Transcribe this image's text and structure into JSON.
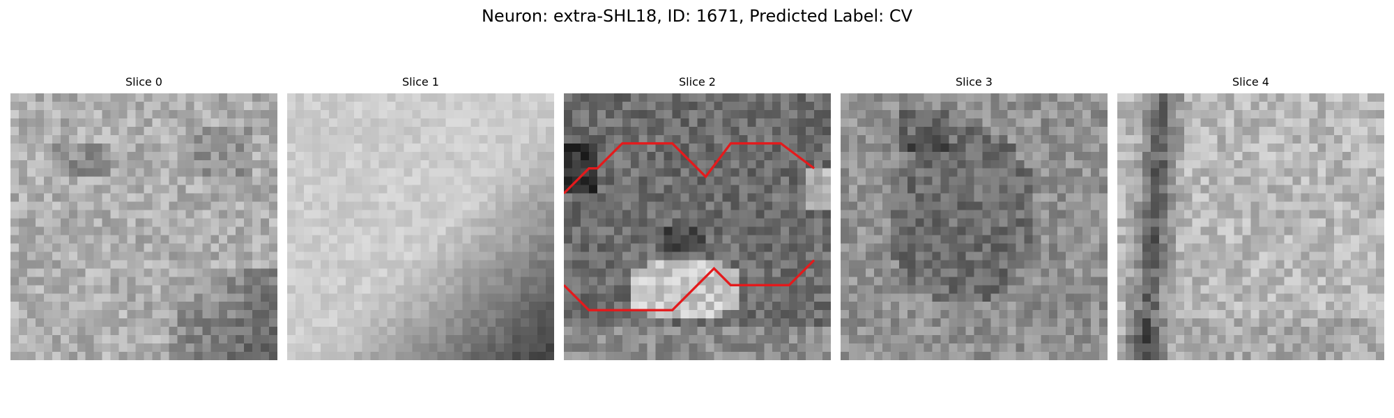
{
  "figure": {
    "title": "Neuron: extra-SHL18, ID: 1671, Predicted Label: CV"
  },
  "slices": [
    {
      "label": "Slice 0"
    },
    {
      "label": "Slice 1"
    },
    {
      "label": "Slice 2"
    },
    {
      "label": "Slice 3"
    },
    {
      "label": "Slice 4"
    }
  ],
  "contour": {
    "color": "#e41a1c",
    "grid_size": 32,
    "top_path": [
      [
        0,
        12
      ],
      [
        3,
        9
      ],
      [
        4,
        9
      ],
      [
        7,
        6
      ],
      [
        13,
        6
      ],
      [
        17,
        10
      ],
      [
        20,
        6
      ],
      [
        26,
        6
      ],
      [
        30,
        9
      ]
    ],
    "bottom_path": [
      [
        0,
        23
      ],
      [
        3,
        26
      ],
      [
        13,
        26
      ],
      [
        18,
        21
      ],
      [
        20,
        23
      ],
      [
        27,
        23
      ],
      [
        30,
        20
      ]
    ]
  },
  "colors": {
    "background": "#ffffff",
    "text": "#000000"
  }
}
